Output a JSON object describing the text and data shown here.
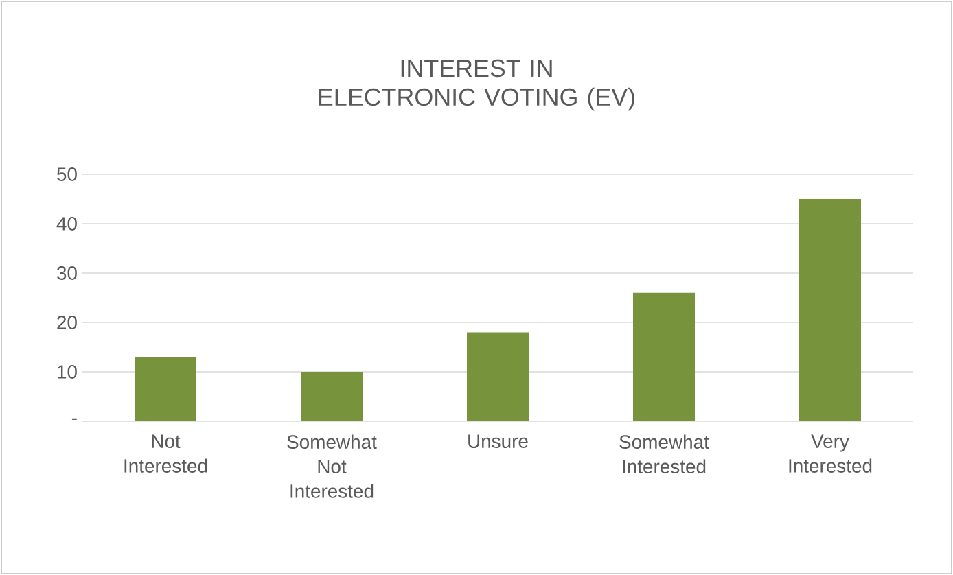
{
  "chart_data": {
    "type": "bar",
    "title": "INTEREST IN ELECTRONIC VOTING (EV)",
    "categories": [
      "Not Interested",
      "Somewhat Not Interested",
      "Unsure",
      "Somewhat Interested",
      "Very Interested"
    ],
    "values": [
      13,
      10,
      18,
      26,
      45
    ],
    "color": "#77933c",
    "ylim": [
      0,
      50
    ],
    "yticks": [
      {
        "value": 0,
        "label": "-"
      },
      10,
      20,
      30,
      40,
      50
    ],
    "grid": "y"
  }
}
